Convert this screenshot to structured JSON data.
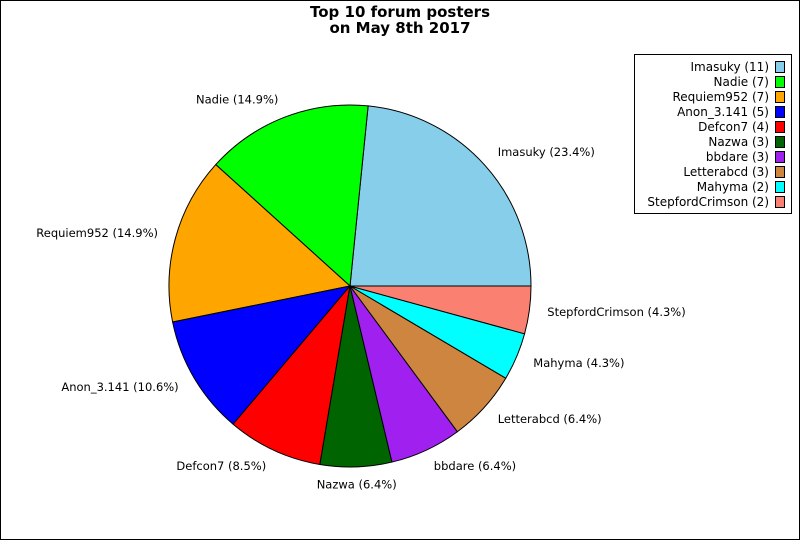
{
  "chart_data": {
    "type": "pie",
    "title_lines": [
      "Top 10 forum posters",
      "on May 8th 2017"
    ],
    "slices": [
      {
        "name": "Imasuky",
        "value": 11,
        "label": "Imasuky (23.4%)",
        "legend": "Imasuky (11)",
        "color": "#87ceeb"
      },
      {
        "name": "Nadie",
        "value": 7,
        "label": "Nadie (14.9%)",
        "legend": "Nadie (7)",
        "color": "#00ff00"
      },
      {
        "name": "Requiem952",
        "value": 7,
        "label": "Requiem952 (14.9%)",
        "legend": "Requiem952 (7)",
        "color": "#ffa500"
      },
      {
        "name": "Anon_3.141",
        "value": 5,
        "label": "Anon_3.141 (10.6%)",
        "legend": "Anon_3.141 (5)",
        "color": "#0000ff"
      },
      {
        "name": "Defcon7",
        "value": 4,
        "label": "Defcon7 (8.5%)",
        "legend": "Defcon7 (4)",
        "color": "#ff0000"
      },
      {
        "name": "Nazwa",
        "value": 3,
        "label": "Nazwa (6.4%)",
        "legend": "Nazwa (3)",
        "color": "#006400"
      },
      {
        "name": "bbdare",
        "value": 3,
        "label": "bbdare (6.4%)",
        "legend": "bbdare (3)",
        "color": "#a020f0"
      },
      {
        "name": "Letterabcd",
        "value": 3,
        "label": "Letterabcd (6.4%)",
        "legend": "Letterabcd (3)",
        "color": "#cd853f"
      },
      {
        "name": "Mahyma",
        "value": 2,
        "label": "Mahyma (4.3%)",
        "legend": "Mahyma (2)",
        "color": "#00ffff"
      },
      {
        "name": "StepfordCrimson",
        "value": 2,
        "label": "StepfordCrimson (4.3%)",
        "legend": "StepfordCrimson (2)",
        "color": "#fa8072"
      }
    ],
    "legend_position": "top-right"
  }
}
